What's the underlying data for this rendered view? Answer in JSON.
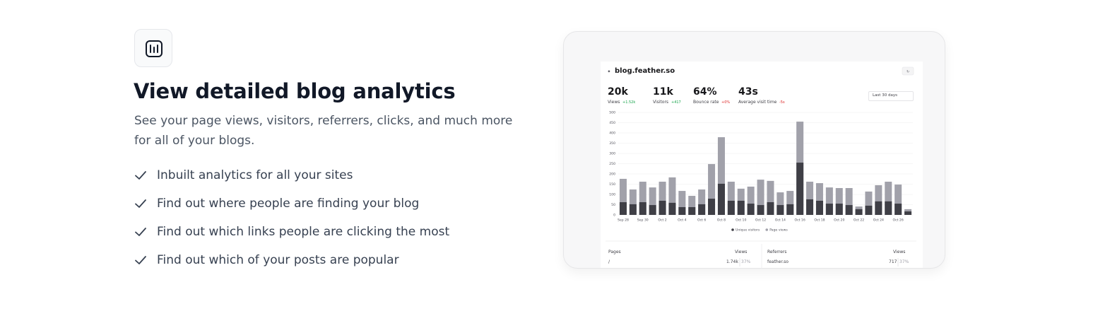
{
  "feature": {
    "title": "View detailed blog analytics",
    "description": "See your page views, visitors, referrers, clicks, and much more for all of your blogs.",
    "items": [
      "Inbuilt analytics for all your sites",
      "Find out where people are finding your blog",
      "Find out which links people are clicking the most",
      "Find out which of your posts are popular"
    ]
  },
  "dashboard": {
    "site": "blog.feather.so",
    "range": "Last 30 days",
    "stats": [
      {
        "value": "20k",
        "label": "Views",
        "change": "+1.52k"
      },
      {
        "value": "11k",
        "label": "Visitors",
        "change": "+417"
      },
      {
        "value": "64%",
        "label": "Bounce rate",
        "change": "+0%"
      },
      {
        "value": "43s",
        "label": "Average visit time",
        "change": "-5s"
      }
    ],
    "pages": {
      "title": "Pages",
      "column": "Views",
      "rows": [
        [
          "/",
          "1.74k",
          "37%"
        ]
      ]
    },
    "referrers": {
      "title": "Referrers",
      "column": "Views",
      "rows": [
        [
          "feather.so",
          "717",
          "37%"
        ]
      ]
    }
  },
  "chart_data": {
    "type": "bar",
    "categories": [
      "Sep 28",
      null,
      "Sep 30",
      null,
      "Oct 2",
      null,
      "Oct 4",
      null,
      "Oct 6",
      null,
      "Oct 8",
      null,
      "Oct 10",
      null,
      "Oct 12",
      null,
      "Oct 14",
      null,
      "Oct 16",
      null,
      "Oct 18",
      null,
      "Oct 20",
      null,
      "Oct 22",
      null,
      "Oct 24",
      null,
      "Oct 26",
      null
    ],
    "series": [
      {
        "name": "Unique visitors",
        "color": "#3f3f46",
        "values": [
          62,
          52,
          62,
          48,
          69,
          59,
          38,
          38,
          52,
          79,
          152,
          69,
          69,
          55,
          48,
          62,
          48,
          52,
          255,
          76,
          69,
          55,
          55,
          48,
          28,
          45,
          66,
          66,
          55,
          17
        ]
      },
      {
        "name": "Page views",
        "color": "#a1a1aa",
        "values": [
          176,
          124,
          162,
          134,
          162,
          183,
          117,
          93,
          124,
          248,
          379,
          162,
          128,
          138,
          172,
          166,
          110,
          117,
          455,
          162,
          155,
          134,
          131,
          131,
          41,
          114,
          145,
          162,
          148,
          28
        ]
      }
    ],
    "ylim": [
      0,
      500
    ],
    "yticks": [
      0,
      50,
      100,
      150,
      200,
      250,
      300,
      350,
      400,
      450,
      500
    ],
    "grid": true
  }
}
